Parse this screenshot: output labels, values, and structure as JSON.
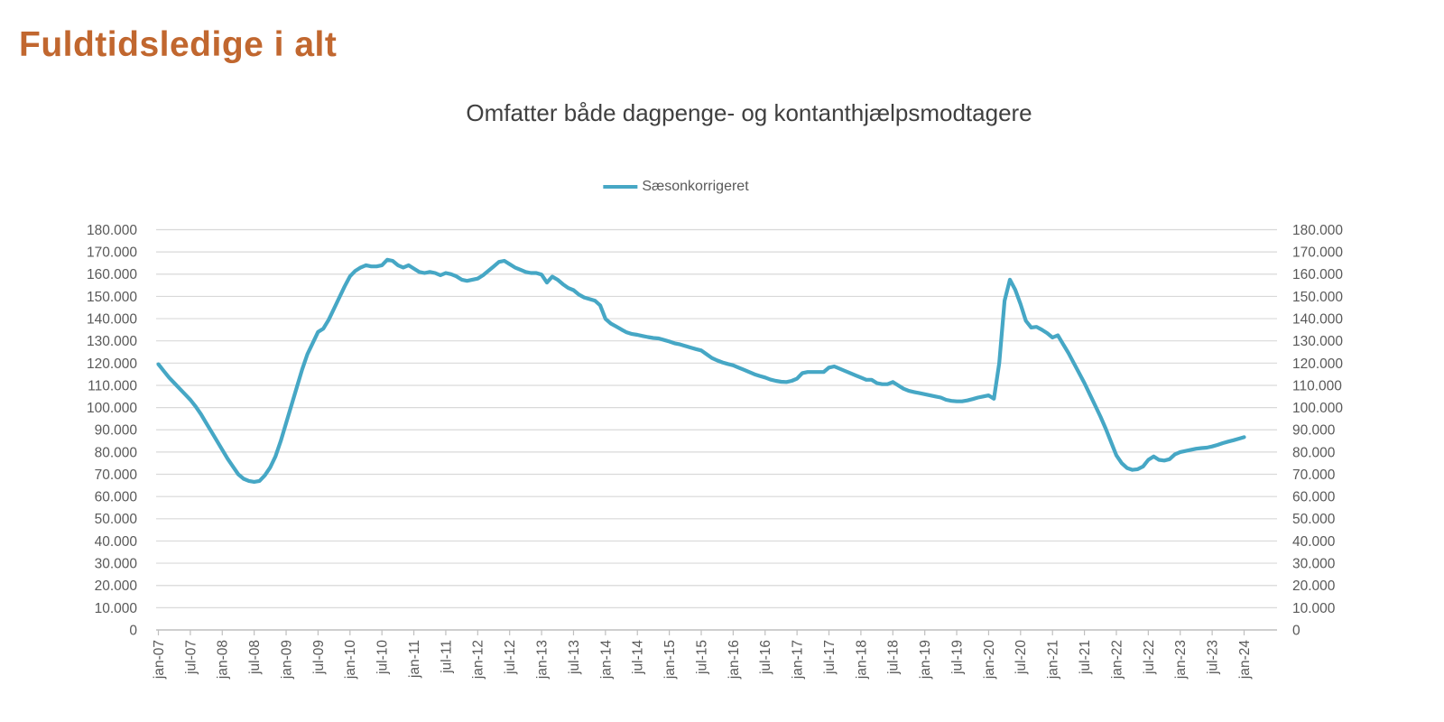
{
  "page": {
    "title": "Fuldtidsledige i alt"
  },
  "chart": {
    "subtitle": "Omfatter både dagpenge- og kontanthjælpsmodtagere",
    "legend_label": "Sæsonkorrigeret"
  },
  "colors": {
    "title_text": "#C1672F",
    "subtitle_text": "#404040",
    "axis_text": "#595959",
    "gridline": "#D9D9D9",
    "axis_line": "#BFBFBF",
    "series_line": "#46A7C5"
  },
  "chart_data": {
    "type": "line",
    "title": "Omfatter både dagpenge- og kontanthjælpsmodtagere",
    "x_start": "jan-07",
    "x_end": "jan-24",
    "x_frequency": "monthly",
    "x_tick_every_n_months": 6,
    "x_tick_labels": [
      "jan-07",
      "jul-07",
      "jan-08",
      "jul-08",
      "jan-09",
      "jul-09",
      "jan-10",
      "jul-10",
      "jan-11",
      "jul-11",
      "jan-12",
      "jul-12",
      "jan-13",
      "jul-13",
      "jan-14",
      "jul-14",
      "jan-15",
      "jul-15",
      "jan-16",
      "jul-16",
      "jan-17",
      "jul-17",
      "jan-18",
      "jul-18",
      "jan-19",
      "jul-19",
      "jan-20",
      "jul-20",
      "jan-21",
      "jul-21",
      "jan-22",
      "jul-22",
      "jan-23",
      "jul-23",
      "jan-24"
    ],
    "ylim": [
      0,
      180000
    ],
    "y_tick_step": 10000,
    "y_tick_labels": [
      "0",
      "10.000",
      "20.000",
      "30.000",
      "40.000",
      "50.000",
      "60.000",
      "70.000",
      "80.000",
      "90.000",
      "100.000",
      "110.000",
      "120.000",
      "130.000",
      "140.000",
      "150.000",
      "160.000",
      "170.000",
      "180.000"
    ],
    "dual_y_axis": true,
    "grid": "horizontal",
    "legend_position": "top-center",
    "series": [
      {
        "name": "Sæsonkorrigeret",
        "color": "#46A7C5",
        "values": [
          119500,
          116500,
          113500,
          111000,
          108500,
          106000,
          103500,
          100500,
          97000,
          93000,
          89000,
          85000,
          81000,
          77000,
          73500,
          70000,
          68000,
          67000,
          66600,
          67000,
          69500,
          73000,
          78000,
          85000,
          93000,
          101000,
          109000,
          117000,
          124000,
          129000,
          134000,
          135500,
          139500,
          144500,
          149500,
          154500,
          159000,
          161500,
          163000,
          164000,
          163500,
          163500,
          164000,
          166500,
          166000,
          164000,
          163000,
          164000,
          162500,
          161000,
          160500,
          161000,
          160500,
          159500,
          160500,
          160000,
          159000,
          157500,
          157000,
          157500,
          158000,
          159500,
          161500,
          163500,
          165500,
          166000,
          164500,
          163000,
          162000,
          161000,
          160500,
          160500,
          159800,
          156200,
          158900,
          157500,
          155500,
          153800,
          152800,
          150800,
          149500,
          148800,
          148100,
          146000,
          139900,
          137800,
          136500,
          135100,
          133800,
          133100,
          132700,
          132200,
          131700,
          131300,
          131100,
          130400,
          129700,
          128900,
          128400,
          127700,
          127000,
          126300,
          125700,
          124000,
          122300,
          121200,
          120300,
          119600,
          119000,
          118000,
          117000,
          116000,
          115000,
          114200,
          113500,
          112600,
          112000,
          111600,
          111500,
          112000,
          113000,
          115500,
          116000,
          116000,
          116000,
          116000,
          118000,
          118500,
          117500,
          116500,
          115500,
          114500,
          113500,
          112500,
          112500,
          111000,
          110500,
          110500,
          111500,
          110000,
          108500,
          107500,
          107000,
          106500,
          106000,
          105500,
          105000,
          104500,
          103500,
          103000,
          102800,
          102800,
          103200,
          103800,
          104500,
          105000,
          105500,
          104000,
          120000,
          148000,
          157500,
          153000,
          146500,
          139000,
          136000,
          136300,
          135000,
          133500,
          131500,
          132500,
          128500,
          124500,
          120000,
          115500,
          111000,
          106000,
          101000,
          96000,
          90500,
          84500,
          78500,
          75000,
          72800,
          72000,
          72300,
          73500,
          76500,
          78000,
          76500,
          76200,
          76800,
          79000,
          80000,
          80500,
          81000,
          81500,
          81800,
          82000,
          82500,
          83200,
          84000,
          84700,
          85300,
          86000,
          86700
        ]
      }
    ]
  }
}
